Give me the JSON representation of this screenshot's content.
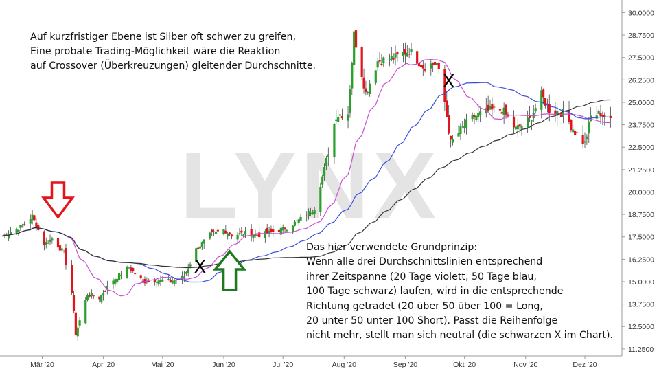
{
  "watermark": "LYNX",
  "annotations": {
    "top_lines": [
      "Auf kurzfristiger Ebene ist Silber oft schwer zu greifen,",
      "Eine probate Trading-Möglichkeit wäre die Reaktion",
      "auf Crossover (Überkreuzungen) gleitender Durchschnitte."
    ],
    "bottom_lines": [
      "Das hier verwendete Grundprinzip:",
      "Wenn alle drei Durchschnittslinien entsprechend",
      "ihrer Zeitspanne (20 Tage violett, 50 Tage blau,",
      "100 Tage schwarz) laufen, wird in die entsprechende",
      "Richtung getradet (20 über 50 über 100 = Long,",
      "20 unter 50 unter 100 Short). Passt die Reihenfolge",
      "nicht mehr, stellt man sich neutral (die schwarzen X im Chart)."
    ],
    "x_marks": [
      {
        "label": "X",
        "date": "2020-05-20",
        "price": 15.5
      },
      {
        "label": "X",
        "date": "2020-09-23",
        "price": 25.85
      }
    ],
    "arrows": [
      {
        "direction": "down",
        "date": "2020-03-09",
        "color": "#e3141b"
      },
      {
        "direction": "up",
        "date": "2020-06-04",
        "color": "#1f7a1f"
      }
    ]
  },
  "chart_data": {
    "type": "candlestick",
    "x_tick_labels": [
      "Mär '20",
      "Apr '20",
      "Mai '20",
      "Jun '20",
      "Jul '20",
      "Aug '20",
      "Sep '20",
      "Okt '20",
      "Nov '20",
      "Dez '20"
    ],
    "y_tick_labels": [
      "11.2500",
      "12.5000",
      "13.7500",
      "15.0000",
      "16.2500",
      "17.5000",
      "18.7500",
      "20.0000",
      "21.2500",
      "22.5000",
      "23.7500",
      "25.0000",
      "26.2500",
      "27.5000",
      "28.7500",
      "30.0000"
    ],
    "ylim": [
      10.9,
      30.4
    ],
    "up_color": "#2ca02c",
    "down_color": "#e3141b",
    "price_keypoints": [
      [
        "2020-02-10",
        17.55
      ],
      [
        "2020-02-20",
        18.1
      ],
      [
        "2020-02-25",
        18.65
      ],
      [
        "2020-03-02",
        17.1
      ],
      [
        "2020-03-06",
        17.4
      ],
      [
        "2020-03-12",
        16.6
      ],
      [
        "2020-03-16",
        14.4
      ],
      [
        "2020-03-18",
        12.1
      ],
      [
        "2020-03-24",
        14.3
      ],
      [
        "2020-03-30",
        14.1
      ],
      [
        "2020-04-06",
        15.1
      ],
      [
        "2020-04-14",
        15.8
      ],
      [
        "2020-04-21",
        15.0
      ],
      [
        "2020-04-28",
        15.1
      ],
      [
        "2020-05-05",
        15.0
      ],
      [
        "2020-05-12",
        15.3
      ],
      [
        "2020-05-18",
        16.8
      ],
      [
        "2020-05-25",
        17.6
      ],
      [
        "2020-06-01",
        17.9
      ],
      [
        "2020-06-05",
        17.6
      ],
      [
        "2020-06-12",
        17.7
      ],
      [
        "2020-06-19",
        17.6
      ],
      [
        "2020-06-26",
        17.8
      ],
      [
        "2020-07-03",
        18.0
      ],
      [
        "2020-07-10",
        18.5
      ],
      [
        "2020-07-17",
        19.1
      ],
      [
        "2020-07-22",
        21.3
      ],
      [
        "2020-07-28",
        24.3
      ],
      [
        "2020-08-03",
        24.4
      ],
      [
        "2020-08-06",
        28.8
      ],
      [
        "2020-08-12",
        25.5
      ],
      [
        "2020-08-18",
        27.3
      ],
      [
        "2020-08-27",
        27.5
      ],
      [
        "2020-09-03",
        27.9
      ],
      [
        "2020-09-10",
        27.0
      ],
      [
        "2020-09-17",
        27.2
      ],
      [
        "2020-09-21",
        25.0
      ],
      [
        "2020-09-24",
        22.7
      ],
      [
        "2020-09-30",
        23.6
      ],
      [
        "2020-10-06",
        24.2
      ],
      [
        "2020-10-13",
        24.5
      ],
      [
        "2020-10-20",
        24.6
      ],
      [
        "2020-10-27",
        23.5
      ],
      [
        "2020-11-03",
        24.0
      ],
      [
        "2020-11-09",
        25.4
      ],
      [
        "2020-11-13",
        24.6
      ],
      [
        "2020-11-20",
        24.4
      ],
      [
        "2020-11-27",
        23.2
      ],
      [
        "2020-12-01",
        22.7
      ],
      [
        "2020-12-04",
        24.2
      ],
      [
        "2020-12-09",
        24.4
      ],
      [
        "2020-12-14",
        23.9
      ]
    ],
    "moving_averages": [
      {
        "period": 20,
        "color": "#c84fd0"
      },
      {
        "period": 50,
        "color": "#3a4fd8"
      },
      {
        "period": 100,
        "color": "#333333"
      }
    ]
  }
}
